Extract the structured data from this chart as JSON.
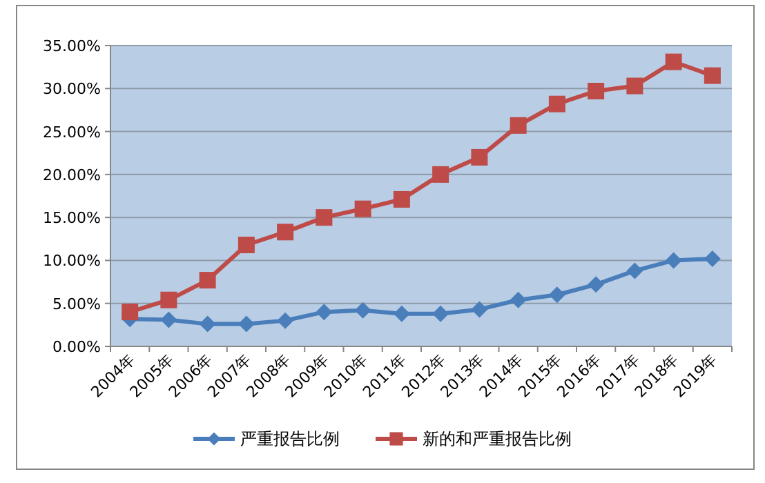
{
  "chart_data": {
    "type": "line",
    "categories": [
      "2004年",
      "2005年",
      "2006年",
      "2007年",
      "2008年",
      "2009年",
      "2010年",
      "2011年",
      "2012年",
      "2013年",
      "2014年",
      "2015年",
      "2016年",
      "2017年",
      "2018年",
      "2019年"
    ],
    "series": [
      {
        "name": "严重报告比例",
        "color": "#4a7ebb",
        "marker": "diamond",
        "values": [
          3.2,
          3.1,
          2.6,
          2.6,
          3.0,
          4.0,
          4.2,
          3.8,
          3.8,
          4.3,
          5.4,
          6.0,
          7.2,
          8.8,
          10.0,
          10.2
        ]
      },
      {
        "name": "新的和严重报告比例",
        "color": "#be4b48",
        "marker": "square",
        "values": [
          4.0,
          5.4,
          7.7,
          11.8,
          13.3,
          15.0,
          16.0,
          17.1,
          20.0,
          22.0,
          25.7,
          28.2,
          29.7,
          30.3,
          33.1,
          31.5
        ]
      }
    ],
    "ylim": [
      0,
      35
    ],
    "yticks": [
      {
        "value": 0,
        "label": "0.00%"
      },
      {
        "value": 5,
        "label": "5.00%"
      },
      {
        "value": 10,
        "label": "10.00%"
      },
      {
        "value": 15,
        "label": "15.00%"
      },
      {
        "value": 20,
        "label": "20.00%"
      },
      {
        "value": 25,
        "label": "25.00%"
      },
      {
        "value": 30,
        "label": "30.00%"
      },
      {
        "value": 35,
        "label": "35.00%"
      }
    ],
    "grid": "y",
    "legend": "bottom",
    "line_style": "solid"
  }
}
